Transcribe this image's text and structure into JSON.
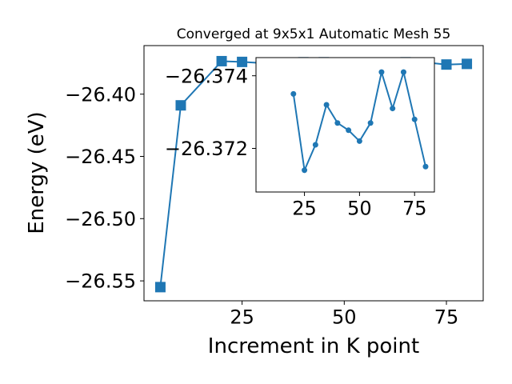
{
  "chart_data": [
    {
      "type": "line",
      "title": "Converged at 9x5x1 Automatic Mesh 55",
      "xlabel": "Increment in K point",
      "ylabel": "Energy (eV)",
      "xlim": [
        1,
        84
      ],
      "ylim": [
        -26.566,
        -26.361
      ],
      "xticks": [
        25,
        50,
        75
      ],
      "yticks": [
        -26.4,
        -26.45,
        -26.5,
        -26.55
      ],
      "ytick_labels": [
        "−26.40",
        "−26.45",
        "−26.50",
        "−26.55"
      ],
      "marker": "square",
      "grid": false,
      "series": [
        {
          "color": "#1f77b4",
          "x": [
            5,
            10,
            20,
            25,
            30,
            35,
            40,
            45,
            50,
            55,
            60,
            65,
            70,
            75,
            80
          ],
          "y": [
            -26.555,
            -26.409,
            -26.3735,
            -26.3741,
            -26.3751,
            -26.3747,
            -26.3744,
            -26.3744,
            -26.375,
            -26.3754,
            -26.3755,
            -26.3744,
            -26.3745,
            -26.3762,
            -26.3757
          ]
        }
      ]
    },
    {
      "type": "line",
      "role": "inset",
      "title": "",
      "xlabel": "",
      "ylabel": "",
      "xlim": [
        3,
        84
      ],
      "ylim": [
        -26.3708,
        -26.3745
      ],
      "xticks": [
        25,
        50,
        75
      ],
      "yticks": [
        -26.374,
        -26.372
      ],
      "ytick_labels": [
        "−26.374",
        "−26.372"
      ],
      "marker": "circle",
      "grid": false,
      "series": [
        {
          "color": "#1f77b4",
          "x": [
            20,
            25,
            30,
            35,
            40,
            45,
            50,
            55,
            60,
            65,
            70,
            75,
            80
          ],
          "y": [
            -26.3735,
            -26.3714,
            -26.3721,
            -26.3732,
            -26.3727,
            -26.3725,
            -26.3722,
            -26.3727,
            -26.3741,
            -26.3731,
            -26.3741,
            -26.3728,
            -26.3715
          ]
        }
      ]
    }
  ],
  "colors": {
    "series": "#1f77b4",
    "axes": "#000000",
    "background": "#ffffff"
  }
}
